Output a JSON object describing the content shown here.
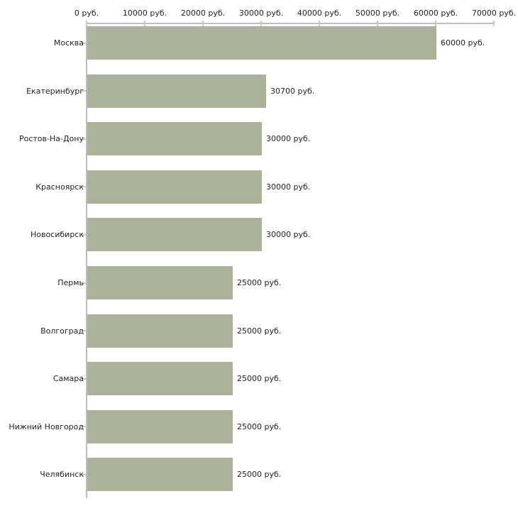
{
  "chart_data": {
    "type": "bar",
    "orientation": "horizontal",
    "title": "",
    "xlabel": "",
    "ylabel": "",
    "unit": "руб.",
    "xlim": [
      0,
      70000
    ],
    "grid": false,
    "legend": false,
    "categories": [
      "Москва",
      "Екатеринбург",
      "Ростов-На-Дону",
      "Красноярск",
      "Новосибирск",
      "Пермь",
      "Волгоград",
      "Самара",
      "Нижний Новгород",
      "Челябинск"
    ],
    "values": [
      60000,
      30700,
      30000,
      30000,
      30000,
      25000,
      25000,
      25000,
      25000,
      25000
    ],
    "value_labels": [
      "60000 руб.",
      "30700 руб.",
      "30000 руб.",
      "30000 руб.",
      "30000 руб.",
      "25000 руб.",
      "25000 руб.",
      "25000 руб.",
      "25000 руб.",
      "25000 руб."
    ],
    "x_ticks": [
      0,
      10000,
      20000,
      30000,
      40000,
      50000,
      60000,
      70000
    ],
    "x_tick_labels": [
      "0 руб.",
      "10000 руб.",
      "20000 руб.",
      "30000 руб.",
      "40000 руб.",
      "50000 руб.",
      "60000 руб.",
      "70000 руб."
    ],
    "colors": {
      "bar": "#ACB199",
      "axis_line": "#BDBDBD",
      "tick_mark": "#CCCCA6",
      "text": "#222222",
      "background": "#FFFFFF"
    }
  }
}
